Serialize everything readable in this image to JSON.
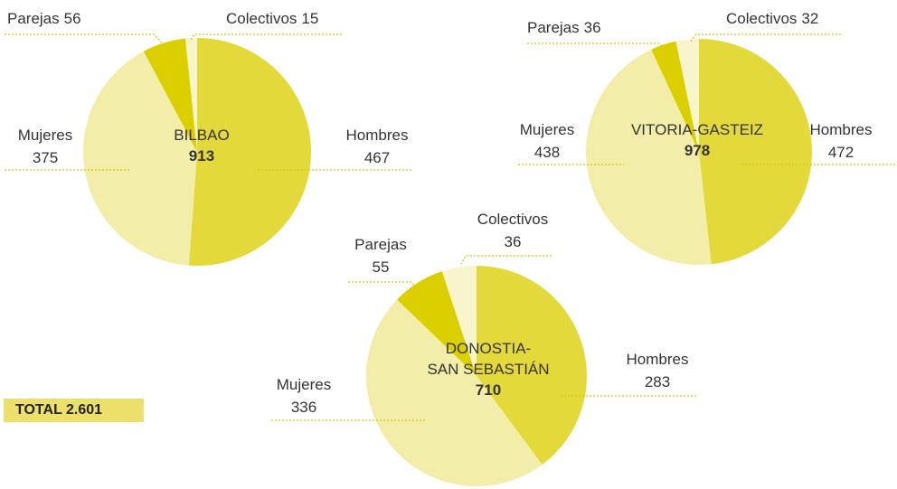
{
  "chart_data": [
    {
      "type": "pie",
      "title": "BILBAO",
      "total": 913,
      "categories": [
        "Hombres",
        "Mujeres",
        "Parejas",
        "Colectivos"
      ],
      "values": [
        467,
        375,
        56,
        15
      ],
      "colors": [
        "#e4d93a",
        "#f2eda8",
        "#dccf00",
        "#f8f5cc"
      ]
    },
    {
      "type": "pie",
      "title": "VITORIA-GASTEIZ",
      "total": 978,
      "categories": [
        "Hombres",
        "Mujeres",
        "Parejas",
        "Colectivos"
      ],
      "values": [
        472,
        438,
        36,
        32
      ],
      "colors": [
        "#e4d93a",
        "#f2eda8",
        "#dccf00",
        "#f8f5cc"
      ]
    },
    {
      "type": "pie",
      "title": "DONOSTIA-\nSAN SEBASTIÁN",
      "total": 710,
      "categories": [
        "Hombres",
        "Mujeres",
        "Parejas",
        "Colectivos"
      ],
      "values": [
        283,
        336,
        55,
        36
      ],
      "colors": [
        "#e4d93a",
        "#f2eda8",
        "#dccf00",
        "#f8f5cc"
      ]
    }
  ],
  "total_label": "TOTAL 2.601"
}
